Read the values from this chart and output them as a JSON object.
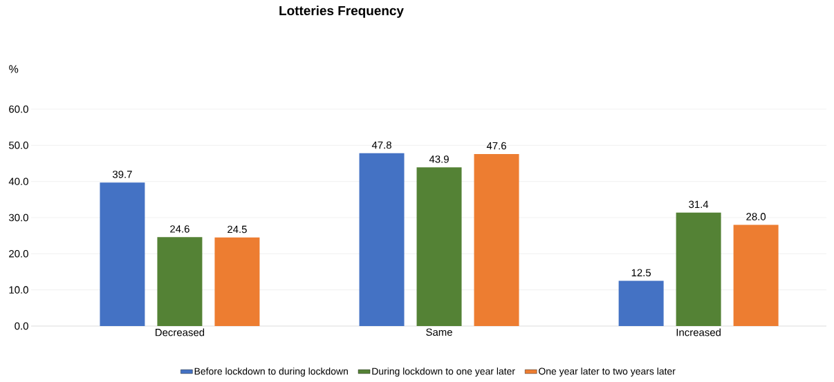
{
  "chart_data": {
    "type": "bar",
    "title": "Lotteries Frequency",
    "ylabel": "%",
    "categories": [
      "Decreased",
      "Same",
      "Increased"
    ],
    "series": [
      {
        "name": "Before lockdown to during lockdown",
        "color": "#4472c4",
        "values": [
          39.7,
          47.8,
          12.5
        ],
        "value_labels": [
          "39.7",
          "47.8",
          "12.5"
        ]
      },
      {
        "name": "During lockdown to one year later",
        "color": "#548235",
        "values": [
          24.6,
          43.9,
          31.4
        ],
        "value_labels": [
          "24.6",
          "43.9",
          "31.4"
        ]
      },
      {
        "name": "One year later to two years later",
        "color": "#ed7d31",
        "values": [
          24.5,
          47.6,
          28.0
        ],
        "value_labels": [
          "24.5",
          "47.6",
          "28.0"
        ]
      }
    ],
    "ylim": [
      0,
      60
    ],
    "yticks": [
      {
        "value": 0,
        "label": "0.0"
      },
      {
        "value": 10,
        "label": "10.0"
      },
      {
        "value": 20,
        "label": "20.0"
      },
      {
        "value": 30,
        "label": "30.0"
      },
      {
        "value": 40,
        "label": "40.0"
      },
      {
        "value": 50,
        "label": "50.0"
      },
      {
        "value": 60,
        "label": "60.0"
      }
    ],
    "grid": "y",
    "legend": "bottom"
  }
}
